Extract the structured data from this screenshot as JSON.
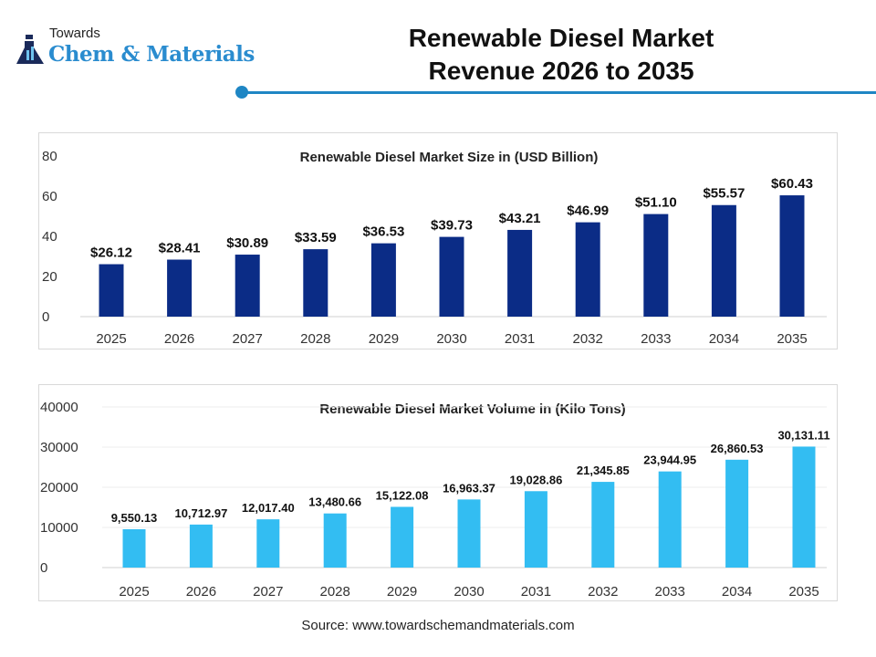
{
  "logo": {
    "line1": "Towards",
    "line2": "Chem & Materials"
  },
  "header": {
    "title_line1": "Renewable Diesel Market",
    "title_line2": "Revenue 2026 to 2035"
  },
  "colors": {
    "accent": "#1f86c4",
    "size_bars": "#0b2c86",
    "volume_bars": "#33bdf2"
  },
  "chart_data": [
    {
      "type": "bar",
      "title": "Renewable Diesel Market  Size in (USD Billion)",
      "categories": [
        "2025",
        "2026",
        "2027",
        "2028",
        "2029",
        "2030",
        "2031",
        "2032",
        "2033",
        "2034",
        "2035"
      ],
      "values": [
        26.12,
        28.41,
        30.89,
        33.59,
        36.53,
        39.73,
        43.21,
        46.99,
        51.1,
        55.57,
        60.43
      ],
      "data_labels": [
        "$26.12",
        "$28.41",
        "$30.89",
        "$33.59",
        "$36.53",
        "$39.73",
        "$43.21",
        "$46.99",
        "$51.10",
        "$55.57",
        "$60.43"
      ],
      "yticks": [
        "0",
        "20",
        "40",
        "60",
        "80"
      ],
      "ylim": [
        0,
        80
      ],
      "grid": false,
      "color": "#0b2c86"
    },
    {
      "type": "bar",
      "title": "Renewable Diesel Market Volume in (Kilo Tons)",
      "categories": [
        "2025",
        "2026",
        "2027",
        "2028",
        "2029",
        "2030",
        "2031",
        "2032",
        "2033",
        "2034",
        "2035"
      ],
      "values": [
        9550.13,
        10712.97,
        12017.4,
        13480.66,
        15122.08,
        16963.37,
        19028.86,
        21345.85,
        23944.95,
        26860.53,
        30131.11
      ],
      "data_labels": [
        "9,550.13",
        "10,712.97",
        "12,017.40",
        "13,480.66",
        "15,122.08",
        "16,963.37",
        "19,028.86",
        "21,345.85",
        "23,944.95",
        "26,860.53",
        "30,131.11"
      ],
      "yticks": [
        "0",
        "10000",
        "20000",
        "30000",
        "40000"
      ],
      "ylim": [
        0,
        40000
      ],
      "grid": true,
      "color": "#33bdf2"
    }
  ],
  "footer": {
    "source": "Source: www.towardschemandmaterials.com"
  }
}
